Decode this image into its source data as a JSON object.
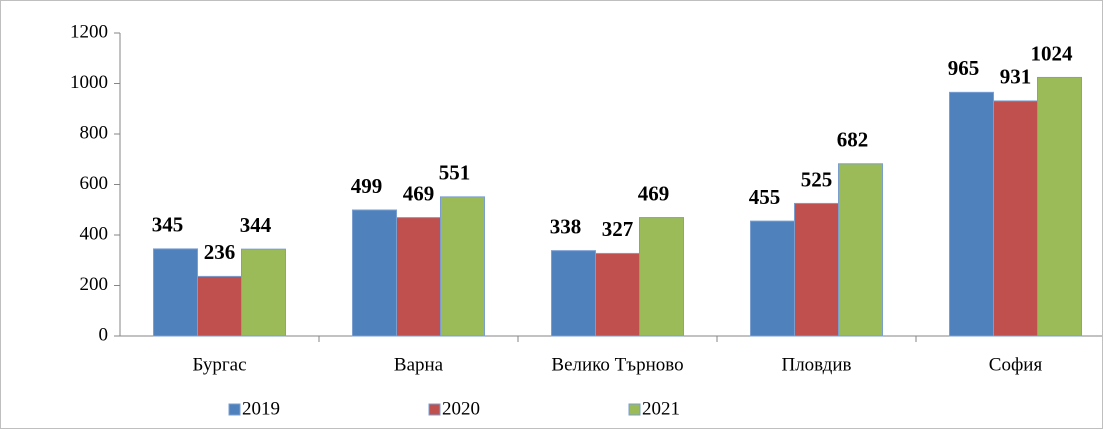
{
  "chart_data": {
    "type": "bar",
    "categories": [
      "Бургас",
      "Варна",
      "Велико Търново",
      "Пловдив",
      "София"
    ],
    "series": [
      {
        "name": "2019",
        "color": "#4f81bd",
        "values": [
          345,
          499,
          338,
          455,
          965
        ]
      },
      {
        "name": "2020",
        "color": "#c0504d",
        "values": [
          236,
          469,
          327,
          525,
          931
        ]
      },
      {
        "name": "2021",
        "color": "#9bbb59",
        "values": [
          344,
          551,
          469,
          682,
          1024
        ]
      }
    ],
    "ylim": [
      0,
      1200
    ],
    "yticks": [
      0,
      200,
      400,
      600,
      800,
      1000,
      1200
    ],
    "grid": false,
    "legend": "bottom"
  }
}
